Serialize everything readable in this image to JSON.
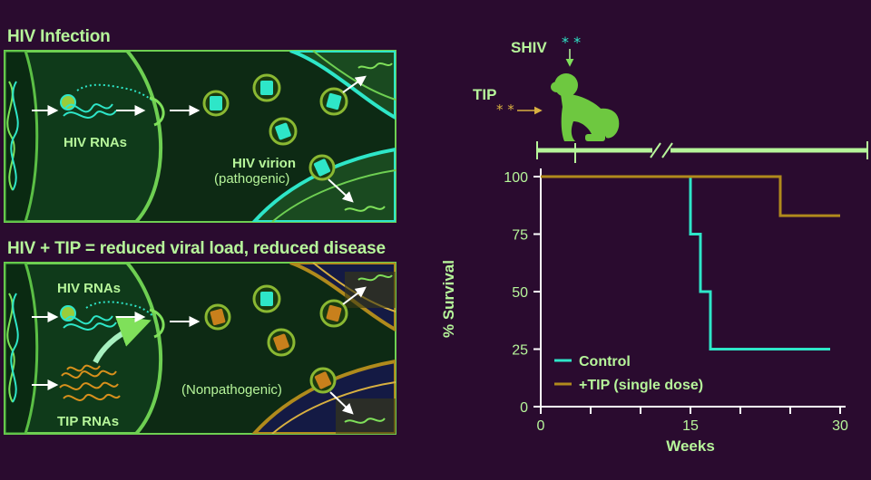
{
  "panels": {
    "top": {
      "title": "HIV Infection",
      "rna_label": "HIV RNAs",
      "virion_label": "HIV virion",
      "virion_sub": "(pathogenic)"
    },
    "bottom": {
      "title": "HIV + TIP = reduced viral load, reduced disease",
      "hiv_rna_label": "HIV RNAs",
      "tip_rna_label": "TIP RNAs",
      "virion_sub": "(Nonpathogenic)"
    }
  },
  "monkey": {
    "shiv_label": "SHIV",
    "tip_label": "TIP"
  },
  "colors": {
    "background": "#2a0b2f",
    "green": "#7fe05a",
    "teal": "#2ee6c8",
    "gold": "#b08a1c"
  },
  "chart_data": {
    "type": "line",
    "xlabel": "Weeks",
    "ylabel": "% Survival",
    "xlim": [
      0,
      30
    ],
    "ylim": [
      0,
      100
    ],
    "xticks": [
      0,
      15,
      30
    ],
    "yticks": [
      0,
      25,
      50,
      75,
      100
    ],
    "legend_position": "bottom-left",
    "series": [
      {
        "name": "Control",
        "color": "#2ee6c8",
        "step_points": [
          [
            0,
            100
          ],
          [
            15,
            100
          ],
          [
            15,
            75
          ],
          [
            16,
            75
          ],
          [
            16,
            50
          ],
          [
            17,
            50
          ],
          [
            17,
            25
          ],
          [
            29,
            25
          ]
        ]
      },
      {
        "name": "+TIP (single dose)",
        "color": "#b08a1c",
        "step_points": [
          [
            0,
            100
          ],
          [
            24,
            100
          ],
          [
            24,
            83
          ],
          [
            30,
            83
          ]
        ]
      }
    ]
  }
}
